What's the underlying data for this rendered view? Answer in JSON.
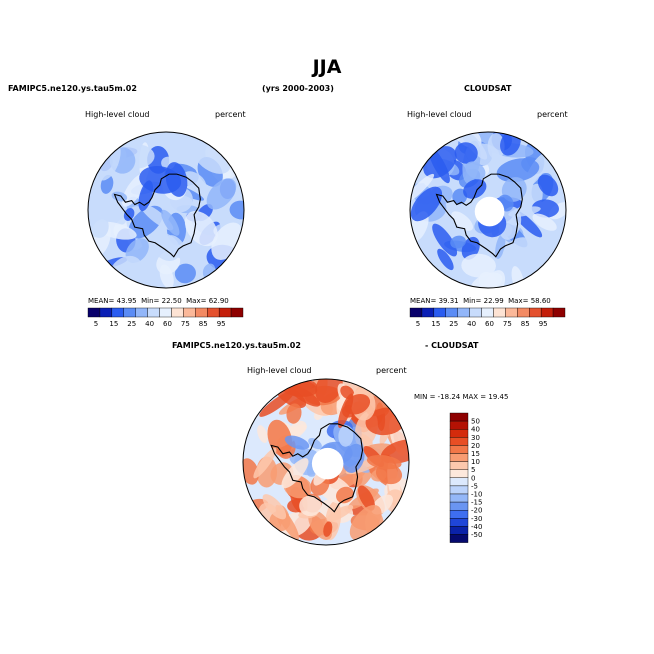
{
  "chart_data": [
    {
      "type": "heatmap",
      "projection": "south-polar-stereographic",
      "season": "JJA",
      "model_label": "FAMIPC5.ne120.ys.tau5m.02",
      "period": "(yrs 2000-2003)",
      "variable": "High-level cloud",
      "units": "percent",
      "stats": {
        "mean_label": "MEAN=",
        "mean": "43.95",
        "min_label": "Min=",
        "min": "22.50",
        "max_label": "Max=",
        "max": "62.90"
      },
      "colorbar": {
        "ticks": [
          5,
          15,
          25,
          40,
          60,
          75,
          85,
          95
        ]
      }
    },
    {
      "type": "heatmap",
      "projection": "south-polar-stereographic",
      "season": "JJA",
      "obs_label": "CLOUDSAT",
      "variable": "High-level cloud",
      "units": "percent",
      "stats": {
        "mean_label": "MEAN=",
        "mean": "39.31",
        "min_label": "Min=",
        "min": "22.99",
        "max_label": "Max=",
        "max": "58.60"
      },
      "colorbar": {
        "ticks": [
          5,
          15,
          25,
          40,
          60,
          75,
          85,
          95
        ]
      }
    },
    {
      "type": "heatmap",
      "projection": "south-polar-stereographic",
      "season": "JJA",
      "diff_left": "FAMIPC5.ne120.ys.tau5m.02",
      "diff_right": "- CLOUDSAT",
      "variable": "High-level cloud",
      "units": "percent",
      "range_text": "MIN = -18.24  MAX =  19.45",
      "colorbar": {
        "ticks": [
          50,
          40,
          30,
          20,
          15,
          10,
          5,
          0,
          -5,
          -10,
          -15,
          -20,
          -30,
          -40,
          -50
        ]
      }
    }
  ],
  "page": {
    "title": "JJA",
    "model": "FAMIPC5.ne120.ys.tau5m.02",
    "years": "(yrs 2000-2003)",
    "obs": "CLOUDSAT",
    "variable": "High-level cloud",
    "units": "percent",
    "diff_left": "FAMIPC5.ne120.ys.tau5m.02",
    "diff_right": "- CLOUDSAT",
    "range_text": "MIN = -18.24  MAX =  19.45"
  },
  "colors": {
    "seq": [
      "#08006b",
      "#0a1fb5",
      "#2a5cf0",
      "#5b8cf5",
      "#92b6f9",
      "#c8dcfc",
      "#e6f0fe",
      "#fde3d4",
      "#fbb899",
      "#f38a63",
      "#e4512e",
      "#c41e0a",
      "#8e0000"
    ],
    "div": [
      "#8e0000",
      "#b41204",
      "#d42b0c",
      "#e84e24",
      "#f27748",
      "#f89c72",
      "#fdc8ad",
      "#fde8dc",
      "#dce9fd",
      "#bcd3fb",
      "#94b7f8",
      "#6a95f2",
      "#3e6ef0",
      "#1f46d8",
      "#0a22a8",
      "#050a6e"
    ],
    "land_outline": "#000000"
  }
}
